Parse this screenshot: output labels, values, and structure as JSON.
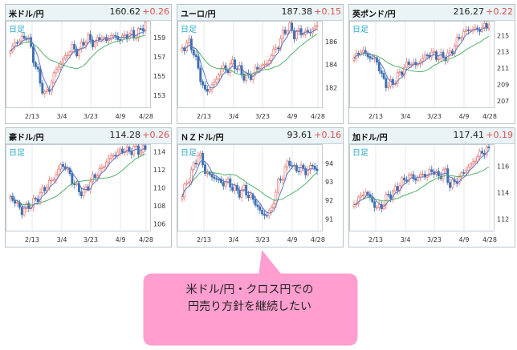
{
  "callout": {
    "line1": "米ドル/円・クロス円での",
    "line2": "円売り方針を継続したい",
    "fill": "#ff9ecf"
  },
  "colors": {
    "up": "#e8766f",
    "down": "#3d6fb3",
    "ma_fast": "#5b78c4",
    "ma_slow": "#52b26b",
    "change": "#e0524f",
    "timeframe": "#2aa7c9"
  },
  "panels": [
    {
      "name": "米ドル/円",
      "price": "160.62",
      "change": "+0.26",
      "timeframe": "日足"
    },
    {
      "name": "ユーロ/円",
      "price": "187.38",
      "change": "+0.15",
      "timeframe": "日足"
    },
    {
      "name": "英ポンド/円",
      "price": "216.27",
      "change": "+0.22",
      "timeframe": "日足"
    },
    {
      "name": "豪ドル/円",
      "price": "114.28",
      "change": "+0.26",
      "timeframe": "日足"
    },
    {
      "name": "ＮＺドル/円",
      "price": "93.61",
      "change": "+0.16",
      "timeframe": "日足"
    },
    {
      "name": "加ドル/円",
      "price": "117.41",
      "change": "+0.19",
      "timeframe": "日足"
    }
  ],
  "chart_data": [
    {
      "type": "candlestick",
      "pair": "米ドル/円",
      "ylim": [
        152,
        160.5
      ],
      "yticks": [
        153,
        155,
        157,
        159
      ],
      "xticks": [
        "2/13",
        "3/4",
        "3/23",
        "4/9",
        "4/28"
      ],
      "path": [
        157.6,
        158.6,
        158.8,
        159.3,
        157.0,
        155.0,
        153.0,
        153.8,
        155.6,
        156.4,
        157.2,
        158.0,
        157.4,
        158.6,
        158.9,
        158.3,
        159.2,
        158.6,
        159.3,
        158.9,
        159.0,
        159.4,
        159.2,
        159.6,
        160.6
      ]
    },
    {
      "type": "candlestick",
      "pair": "ユーロ/円",
      "ylim": [
        180.5,
        187.6
      ],
      "yticks": [
        182,
        184,
        186
      ],
      "xticks": [
        "2/13",
        "3/4",
        "3/23",
        "4/9",
        "4/28"
      ],
      "path": [
        185.3,
        186.0,
        185.2,
        183.3,
        181.6,
        182.0,
        182.6,
        183.8,
        183.5,
        184.2,
        183.6,
        183.0,
        182.9,
        183.5,
        183.9,
        184.0,
        185.0,
        185.6,
        186.8,
        187.3,
        186.6,
        186.9,
        186.7,
        187.0,
        187.4
      ]
    },
    {
      "type": "candlestick",
      "pair": "英ポンド/円",
      "ylim": [
        206.5,
        216.5
      ],
      "yticks": [
        207,
        209,
        211,
        213,
        215
      ],
      "xticks": [
        "2/13",
        "3/4",
        "3/23",
        "4/9",
        "4/28"
      ],
      "path": [
        212.0,
        213.2,
        212.8,
        212.2,
        212.0,
        209.8,
        208.8,
        209.3,
        210.2,
        211.1,
        211.8,
        211.3,
        212.1,
        212.6,
        212.8,
        212.3,
        212.4,
        212.6,
        214.0,
        215.0,
        215.6,
        215.8,
        215.7,
        216.0,
        216.3
      ]
    },
    {
      "type": "candlestick",
      "pair": "豪ドル/円",
      "ylim": [
        105.5,
        114.6
      ],
      "yticks": [
        106,
        108,
        110,
        112,
        114
      ],
      "xticks": [
        "2/13",
        "3/4",
        "3/23",
        "4/9",
        "4/28"
      ],
      "path": [
        109.0,
        108.3,
        107.4,
        107.9,
        108.3,
        109.1,
        109.9,
        110.6,
        111.3,
        112.6,
        112.2,
        110.8,
        109.8,
        109.4,
        110.5,
        111.3,
        112.0,
        112.8,
        113.6,
        113.8,
        114.3,
        114.0,
        114.4,
        114.1,
        114.3
      ]
    },
    {
      "type": "candlestick",
      "pair": "ＮＺドル/円",
      "ylim": [
        90.5,
        94.9
      ],
      "yticks": [
        91,
        92,
        93,
        94
      ],
      "xticks": [
        "2/13",
        "3/4",
        "3/23",
        "4/9",
        "4/28"
      ],
      "path": [
        92.3,
        93.1,
        93.8,
        94.6,
        93.6,
        93.3,
        93.2,
        92.9,
        93.0,
        92.7,
        92.4,
        92.6,
        92.2,
        91.9,
        91.3,
        91.2,
        91.6,
        92.9,
        93.4,
        94.2,
        93.6,
        93.8,
        93.5,
        93.9,
        93.6
      ]
    },
    {
      "type": "candlestick",
      "pair": "加ドル/円",
      "ylim": [
        111.3,
        117.5
      ],
      "yticks": [
        112,
        114,
        116
      ],
      "xticks": [
        "2/13",
        "3/4",
        "3/23",
        "4/9",
        "4/28"
      ],
      "path": [
        113.2,
        113.6,
        114.1,
        113.5,
        112.8,
        113.0,
        113.8,
        114.0,
        114.6,
        115.0,
        115.3,
        115.0,
        115.4,
        115.3,
        115.8,
        115.1,
        115.8,
        114.6,
        114.8,
        115.3,
        115.8,
        116.2,
        116.8,
        117.1,
        117.4
      ]
    }
  ]
}
